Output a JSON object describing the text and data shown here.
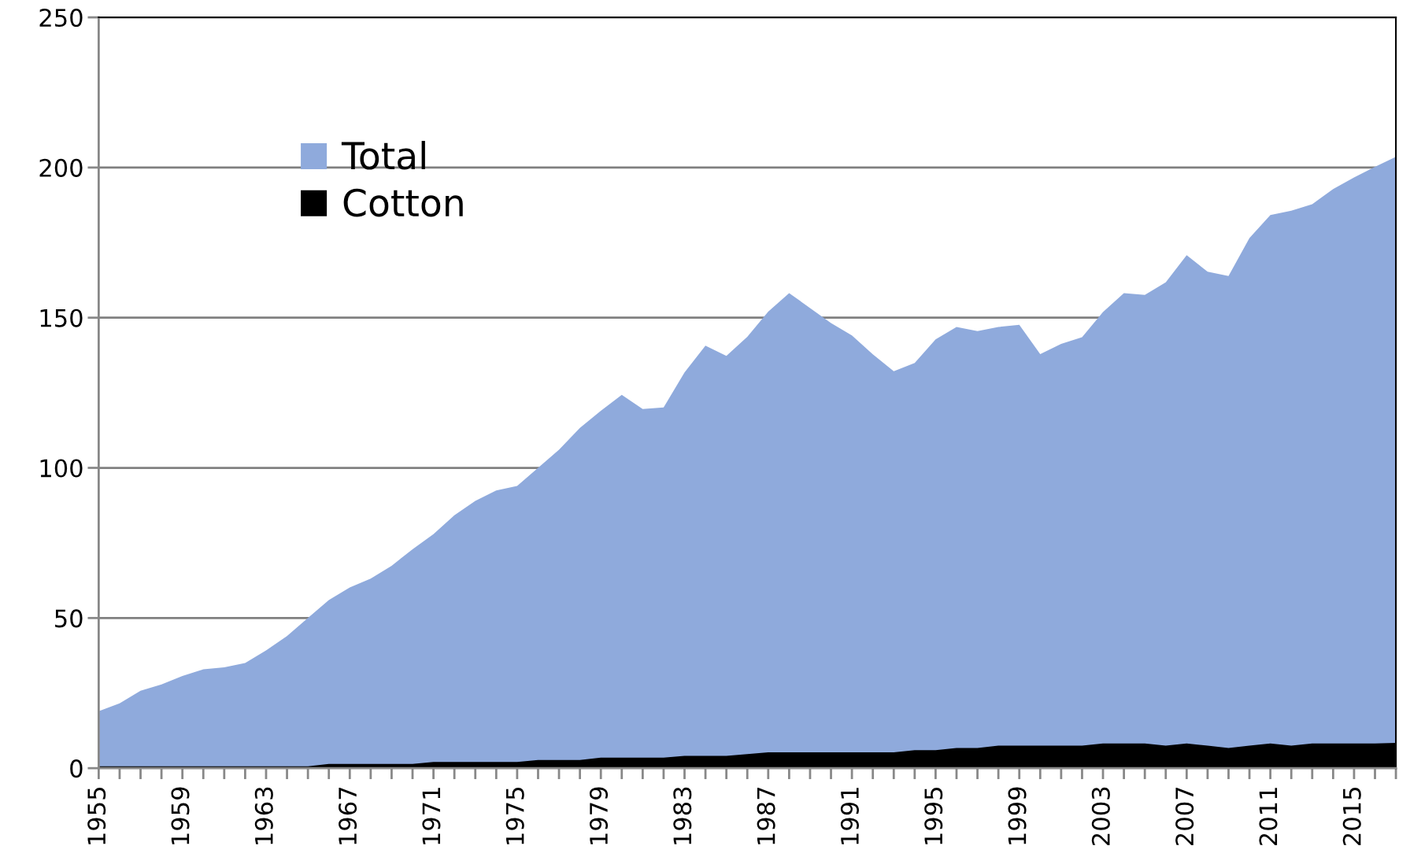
{
  "chart_data": {
    "type": "area",
    "categories": [
      "1955",
      null,
      null,
      null,
      "1959",
      null,
      null,
      null,
      "1963",
      null,
      null,
      null,
      "1967",
      null,
      null,
      null,
      "1971",
      null,
      null,
      null,
      "1975",
      null,
      null,
      null,
      "1979",
      null,
      null,
      null,
      "1983",
      null,
      null,
      null,
      "1987",
      null,
      null,
      null,
      "1991",
      null,
      null,
      null,
      "1995",
      null,
      null,
      null,
      "1999",
      null,
      null,
      null,
      "2003",
      null,
      null,
      null,
      "2007",
      null,
      null,
      null,
      "2011",
      null,
      null,
      null,
      "2015",
      null,
      null
    ],
    "series": [
      {
        "name": "Total",
        "color": "#8faadc",
        "values": [
          19,
          21.6,
          25.8,
          27.9,
          30.7,
          32.9,
          33.6,
          35,
          39.2,
          44,
          50,
          56,
          60.2,
          63.1,
          67.4,
          72.9,
          77.9,
          84.2,
          89,
          92.5,
          94,
          100,
          106,
          113.3,
          119,
          124.3,
          119.6,
          120.1,
          131.8,
          140.7,
          137.3,
          143.6,
          152,
          158.2,
          153.2,
          148.2,
          144.1,
          137.8,
          132.2,
          134.9,
          142.8,
          146.9,
          145.5,
          146.9,
          147.6,
          137.9,
          141.3,
          143.5,
          151.9,
          158.2,
          157.6,
          161.8,
          170.8,
          165.3,
          163.9,
          176.5,
          184.2,
          185.6,
          187.8,
          192.8,
          196.7,
          200.2,
          203.6
        ]
      },
      {
        "name": "Cotton",
        "color": "#000000",
        "values": [
          0.6,
          0.6,
          0.6,
          0.6,
          0.6,
          0.6,
          0.6,
          0.6,
          0.6,
          0.6,
          0.6,
          1.4,
          1.4,
          1.4,
          1.4,
          1.4,
          2.1,
          2.1,
          2.1,
          2.1,
          2.1,
          2.7,
          2.7,
          2.7,
          3.5,
          3.5,
          3.5,
          3.5,
          4.1,
          4.1,
          4.1,
          4.7,
          5.3,
          5.3,
          5.3,
          5.3,
          5.3,
          5.3,
          5.3,
          6,
          6,
          6.7,
          6.7,
          7.5,
          7.5,
          7.5,
          7.5,
          7.5,
          8.2,
          8.2,
          8.2,
          7.5,
          8.2,
          7.5,
          6.7,
          7.5,
          8.2,
          7.5,
          8.2,
          8.2,
          8.2,
          8.2,
          8.4
        ]
      }
    ],
    "ylim": [
      0,
      250
    ],
    "yticks": [
      0,
      50,
      100,
      150,
      200,
      250
    ],
    "grid": "y",
    "legend": "top left"
  }
}
